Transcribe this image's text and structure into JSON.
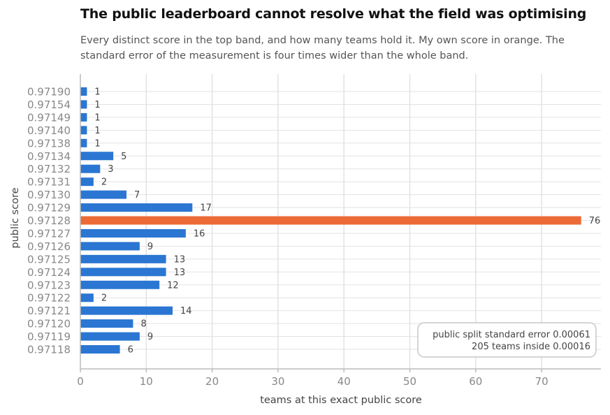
{
  "title": "The public leaderboard cannot resolve what the field was optimising",
  "subtitle": "Every distinct score in the top band, and how many teams hold it. My own score in orange. The standard error of the measurement is four times wider than the whole band.",
  "colors": {
    "bar": "#2a76d2",
    "highlight": "#ec6a36",
    "grid": "#e2e2e2",
    "axis": "#bbbbbb"
  },
  "annotation": {
    "line1": "public split standard error 0.00061",
    "line2": "205 teams inside 0.00016"
  },
  "chart_data": {
    "type": "bar",
    "orientation": "horizontal",
    "xlabel": "teams at this exact public score",
    "ylabel": "public score",
    "xlim": [
      0,
      79
    ],
    "xticks": [
      0,
      10,
      20,
      30,
      40,
      50,
      60,
      70
    ],
    "grid": true,
    "highlight_category": "0.97128",
    "categories": [
      "0.97190",
      "0.97154",
      "0.97149",
      "0.97140",
      "0.97138",
      "0.97134",
      "0.97132",
      "0.97131",
      "0.97130",
      "0.97129",
      "0.97128",
      "0.97127",
      "0.97126",
      "0.97125",
      "0.97124",
      "0.97123",
      "0.97122",
      "0.97121",
      "0.97120",
      "0.97119",
      "0.97118"
    ],
    "values": [
      1,
      1,
      1,
      1,
      1,
      5,
      3,
      2,
      7,
      17,
      76,
      16,
      9,
      13,
      13,
      12,
      2,
      14,
      8,
      9,
      6
    ]
  }
}
